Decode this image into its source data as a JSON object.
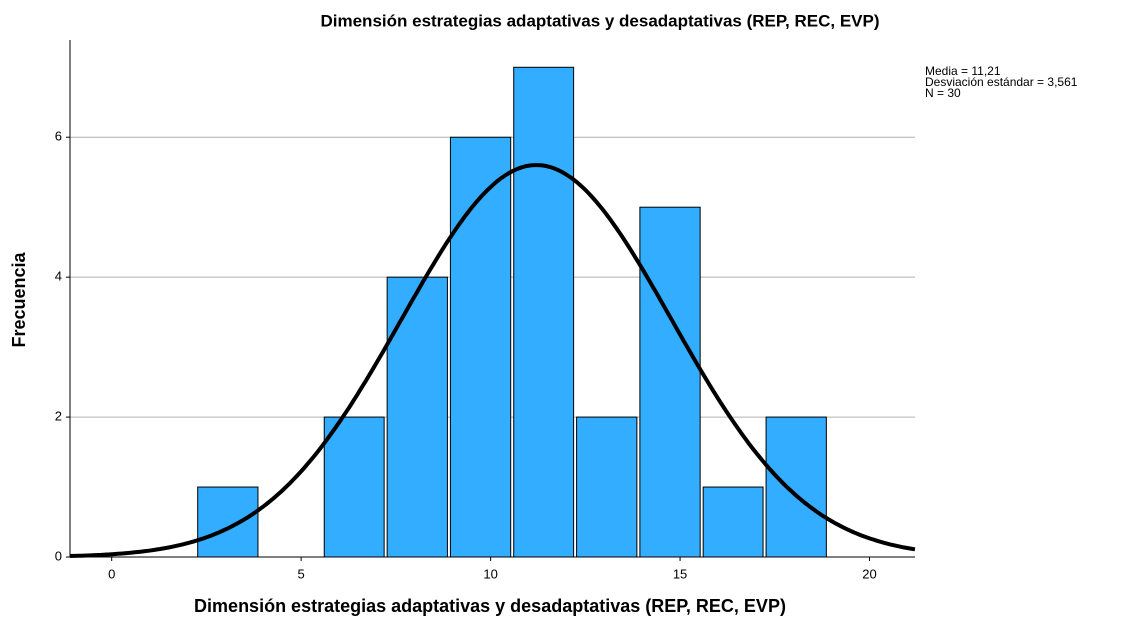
{
  "chart_data": {
    "type": "histogram",
    "title": "Dimensión estrategias adaptativas y desadaptativas (REP, REC, EVP)",
    "x_label": "Dimensión estrategias adaptativas y desadaptativas (REP, REC, EVP)",
    "y_label": "Frecuencia",
    "bins": [
      2.23,
      3.9,
      5.57,
      7.23,
      8.9,
      10.57,
      12.23,
      13.9,
      15.57,
      17.23,
      18.9
    ],
    "values": [
      1,
      0,
      2,
      4,
      6,
      7,
      2,
      5,
      1,
      2
    ],
    "color": "#33adff",
    "xlim": [
      -1.1,
      21.2
    ],
    "xticks": [
      0,
      5,
      10,
      15,
      20
    ],
    "ylim": [
      0,
      7.39
    ],
    "yticks": [
      0,
      2,
      4,
      6
    ],
    "grid": true,
    "stats": [
      {
        "value": 11.21,
        "label": "Media = 11,21"
      },
      {
        "value": 3.561,
        "label": "Desviación estándar = 3,561"
      },
      {
        "value": 30,
        "label": "N = 30"
      }
    ]
  }
}
